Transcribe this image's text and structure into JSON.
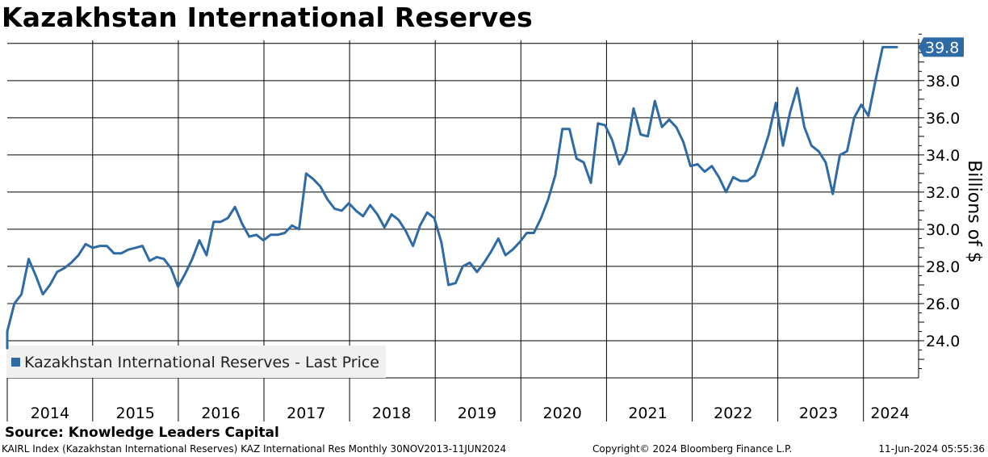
{
  "title": "Kazakhstan International Reserves",
  "source": "Source: Knowledge Leaders Capital",
  "footer": {
    "left": "KAIRL Index (Kazakhstan International Reserves) KAZ International Res  Monthly 30NOV2013-11JUN2024",
    "middle": "Copyright© 2024 Bloomberg Finance L.P.",
    "right": "11-Jun-2024 05:55:36"
  },
  "colors": {
    "series": "#2e6aa6",
    "grid": "#000000"
  },
  "chart_data": {
    "type": "line",
    "title": "Kazakhstan International Reserves",
    "ylabel": "Billions of $",
    "ylim": [
      22.0,
      40.6
    ],
    "yticks": [
      "24.0",
      "26.0",
      "28.0",
      "30.0",
      "32.0",
      "34.0",
      "36.0",
      "38.0"
    ],
    "xticks": [
      "2014",
      "2015",
      "2016",
      "2017",
      "2018",
      "2019",
      "2020",
      "2021",
      "2022",
      "2023",
      "2024"
    ],
    "grid": true,
    "legend": {
      "position": "bottom-left",
      "label": "Kazakhstan International Reserves - Last Price"
    },
    "last_value_label": "39.8",
    "series": [
      {
        "name": "Kazakhstan International Reserves - Last Price",
        "x": [
          "2013-11",
          "2013-12",
          "2014-01",
          "2014-02",
          "2014-03",
          "2014-04",
          "2014-05",
          "2014-06",
          "2014-07",
          "2014-08",
          "2014-09",
          "2014-10",
          "2014-11",
          "2014-12",
          "2015-01",
          "2015-02",
          "2015-03",
          "2015-04",
          "2015-05",
          "2015-06",
          "2015-07",
          "2015-08",
          "2015-09",
          "2015-10",
          "2015-11",
          "2015-12",
          "2016-01",
          "2016-02",
          "2016-03",
          "2016-04",
          "2016-05",
          "2016-06",
          "2016-07",
          "2016-08",
          "2016-09",
          "2016-10",
          "2016-11",
          "2016-12",
          "2017-01",
          "2017-02",
          "2017-03",
          "2017-04",
          "2017-05",
          "2017-06",
          "2017-07",
          "2017-08",
          "2017-09",
          "2017-10",
          "2017-11",
          "2017-12",
          "2018-01",
          "2018-02",
          "2018-03",
          "2018-04",
          "2018-05",
          "2018-06",
          "2018-07",
          "2018-08",
          "2018-09",
          "2018-10",
          "2018-11",
          "2018-12",
          "2019-01",
          "2019-02",
          "2019-03",
          "2019-04",
          "2019-05",
          "2019-06",
          "2019-07",
          "2019-08",
          "2019-09",
          "2019-10",
          "2019-11",
          "2019-12",
          "2020-01",
          "2020-02",
          "2020-03",
          "2020-04",
          "2020-05",
          "2020-06",
          "2020-07",
          "2020-08",
          "2020-09",
          "2020-10",
          "2020-11",
          "2020-12",
          "2021-01",
          "2021-02",
          "2021-03",
          "2021-04",
          "2021-05",
          "2021-06",
          "2021-07",
          "2021-08",
          "2021-09",
          "2021-10",
          "2021-11",
          "2021-12",
          "2022-01",
          "2022-02",
          "2022-03",
          "2022-04",
          "2022-05",
          "2022-06",
          "2022-07",
          "2022-08",
          "2022-09",
          "2022-10",
          "2022-11",
          "2022-12",
          "2023-01",
          "2023-02",
          "2023-03",
          "2023-04",
          "2023-05",
          "2023-06",
          "2023-07",
          "2023-08",
          "2023-09",
          "2023-10",
          "2023-11",
          "2023-12",
          "2024-01",
          "2024-02",
          "2024-03",
          "2024-04",
          "2024-05",
          "2024-06"
        ],
        "values": [
          24.1,
          24.7,
          24.5,
          26.0,
          26.5,
          28.4,
          27.5,
          26.5,
          27.0,
          27.7,
          27.9,
          28.2,
          28.6,
          29.2,
          29.0,
          29.1,
          29.1,
          28.7,
          28.7,
          28.9,
          29.0,
          29.1,
          28.3,
          28.5,
          28.4,
          27.9,
          26.9,
          27.6,
          28.4,
          29.4,
          28.6,
          30.4,
          30.4,
          30.6,
          31.2,
          30.3,
          29.6,
          29.7,
          29.4,
          29.7,
          29.7,
          29.8,
          30.2,
          30.0,
          33.0,
          32.7,
          32.3,
          31.6,
          31.1,
          31.0,
          31.4,
          31.0,
          30.7,
          31.3,
          30.8,
          30.1,
          30.8,
          30.5,
          29.9,
          29.1,
          30.2,
          30.9,
          30.6,
          29.3,
          27.0,
          27.1,
          28.0,
          28.2,
          27.7,
          28.2,
          28.8,
          29.5,
          28.6,
          28.9,
          29.3,
          29.8,
          29.8,
          30.6,
          31.6,
          32.9,
          35.4,
          35.4,
          33.8,
          33.6,
          32.5,
          35.7,
          35.6,
          34.8,
          33.5,
          34.2,
          36.5,
          35.1,
          35.0,
          36.9,
          35.5,
          35.9,
          35.5,
          34.7,
          33.4,
          33.5,
          33.1,
          33.4,
          32.8,
          32.0,
          32.8,
          32.6,
          32.6,
          32.9,
          33.9,
          35.1,
          36.8,
          34.5,
          36.3,
          37.6,
          35.5,
          34.5,
          34.2,
          33.6,
          31.9,
          34.0,
          34.2,
          36.0,
          36.7,
          36.1,
          38.0,
          39.8,
          39.8,
          39.8
        ]
      }
    ]
  }
}
